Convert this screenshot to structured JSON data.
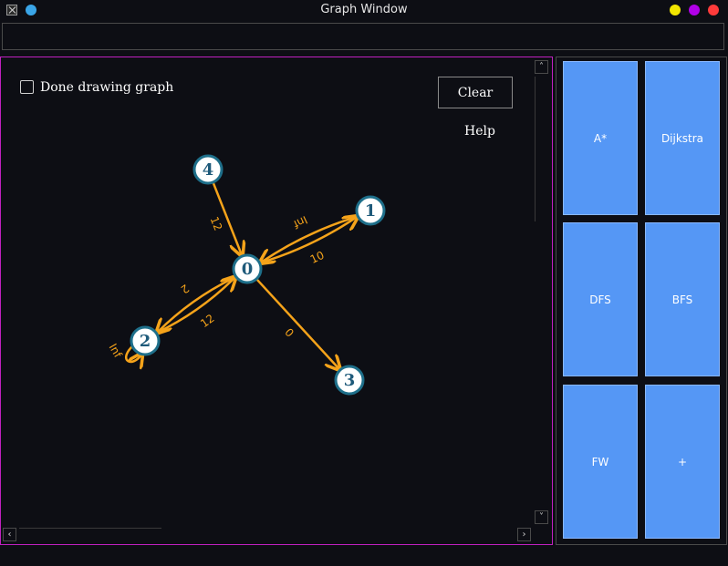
{
  "window": {
    "title": "Graph Window",
    "colors": {
      "pin": "#3aa5e8",
      "minimize": "#f2e600",
      "maximize": "#b100e8",
      "close": "#ff3b3b"
    }
  },
  "canvas": {
    "done_checkbox_label": "Done drawing graph",
    "done_checked": false,
    "clear_label": "Clear",
    "help_label": "Help"
  },
  "graph": {
    "nodes": [
      {
        "id": "0",
        "label": "0"
      },
      {
        "id": "1",
        "label": "1"
      },
      {
        "id": "2",
        "label": "2"
      },
      {
        "id": "3",
        "label": "3"
      },
      {
        "id": "4",
        "label": "4"
      }
    ],
    "edges": [
      {
        "from": "4",
        "to": "0",
        "weight": "12"
      },
      {
        "from": "0",
        "to": "1",
        "weight": "10"
      },
      {
        "from": "1",
        "to": "0",
        "weight": "Inf"
      },
      {
        "from": "0",
        "to": "2",
        "weight": "2"
      },
      {
        "from": "2",
        "to": "0",
        "weight": "12"
      },
      {
        "from": "0",
        "to": "3",
        "weight": "0"
      },
      {
        "from": "2",
        "to": "2",
        "weight": "Inf"
      }
    ],
    "colors": {
      "edge": "#f5a31a",
      "node_border": "#1e6f8a",
      "node_fill": "#ffffff",
      "node_text": "#1e5a7a"
    }
  },
  "algorithms": {
    "astar": "A*",
    "dijkstra": "Dijkstra",
    "dfs": "DFS",
    "bfs": "BFS",
    "fw": "FW",
    "add": "+"
  }
}
